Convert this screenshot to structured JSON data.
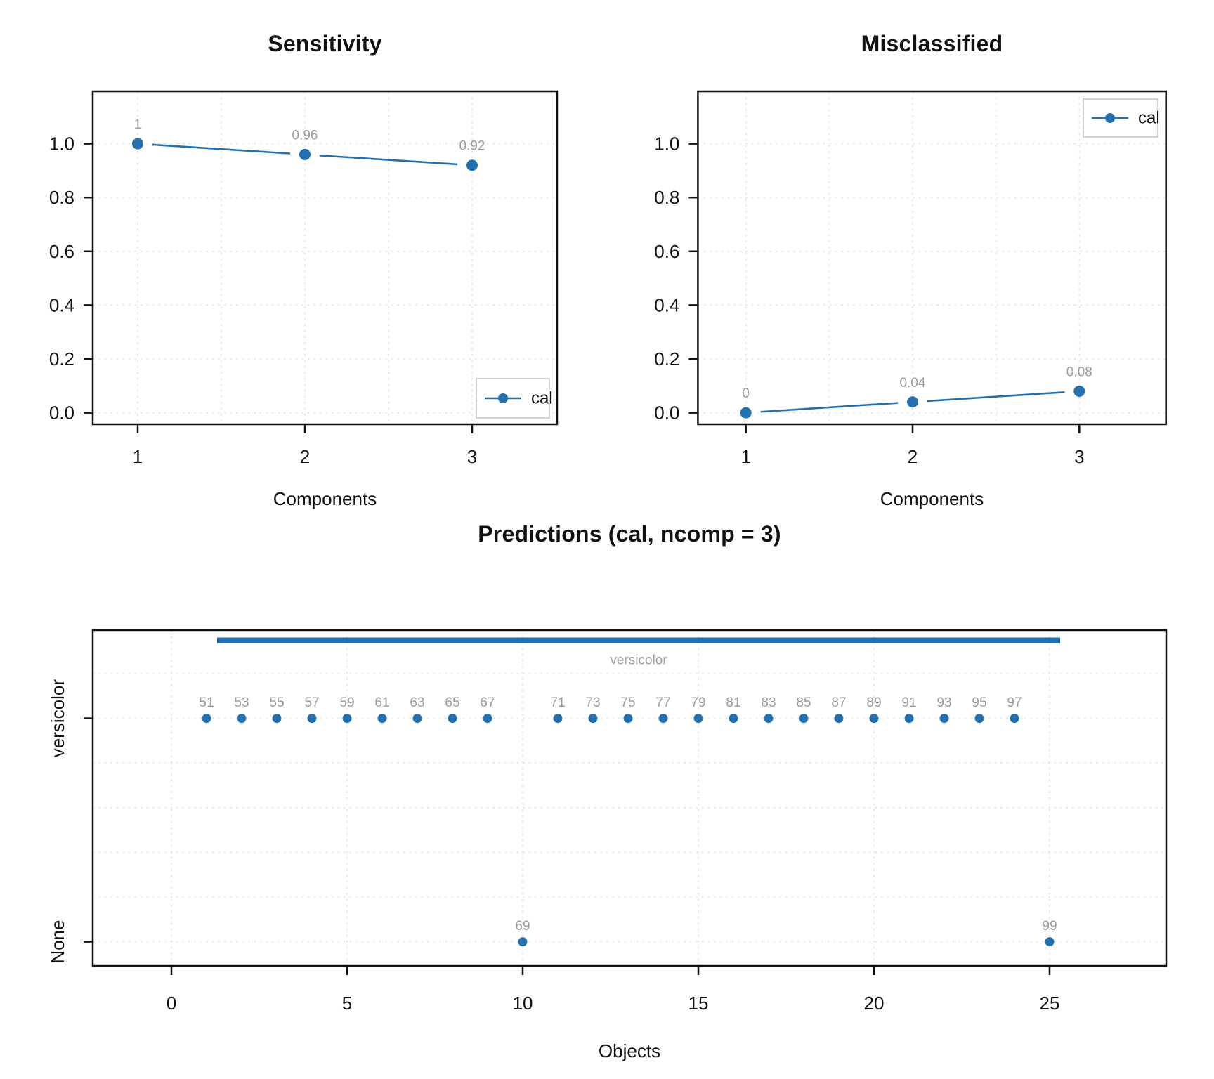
{
  "figure": {
    "background": "#ffffff",
    "accent_color": "#2470AE",
    "grid_color": "#E0E0E0",
    "data_label_color": "#9C9C9C",
    "axis_color": "#111111",
    "legend_border_color": "#C9C9C9"
  },
  "chart_data": [
    {
      "type": "line",
      "title": "Sensitivity",
      "xlabel": "Components",
      "x": [
        1,
        2,
        3
      ],
      "xticks": [
        "1",
        "2",
        "3"
      ],
      "x_minor_grid": [
        1.5,
        2.5
      ],
      "yticks": [
        "0.0",
        "0.2",
        "0.4",
        "0.6",
        "0.8",
        "1.0"
      ],
      "ylim": [
        0,
        1.2
      ],
      "series": [
        {
          "name": "cal",
          "values": [
            1,
            0.96,
            0.92
          ],
          "point_labels": [
            "1",
            "0.96",
            "0.92"
          ]
        }
      ],
      "legend": {
        "label": "cal",
        "position": "bottom-right"
      }
    },
    {
      "type": "line",
      "title": "Misclassified",
      "xlabel": "Components",
      "x": [
        1,
        2,
        3
      ],
      "xticks": [
        "1",
        "2",
        "3"
      ],
      "x_minor_grid": [
        1.5,
        2.5
      ],
      "yticks": [
        "0.0",
        "0.2",
        "0.4",
        "0.6",
        "0.8",
        "1.0"
      ],
      "ylim": [
        0,
        1.2
      ],
      "series": [
        {
          "name": "cal",
          "values": [
            0,
            0.04,
            0.08
          ],
          "point_labels": [
            "0",
            "0.04",
            "0.08"
          ]
        }
      ],
      "legend": {
        "label": "cal",
        "position": "top-right"
      }
    },
    {
      "type": "categorical-scatter",
      "title": "Predictions (cal, ncomp = 3)",
      "xlabel": "Objects",
      "xticks": [
        "0",
        "5",
        "10",
        "15",
        "20",
        "25"
      ],
      "categories": [
        "None",
        "versicolor"
      ],
      "class_bar": {
        "label": "versicolor",
        "x_from": 1.3,
        "x_to": 25.3
      },
      "points": [
        {
          "x": 1,
          "label": "51",
          "category": "versicolor"
        },
        {
          "x": 2,
          "label": "53",
          "category": "versicolor"
        },
        {
          "x": 3,
          "label": "55",
          "category": "versicolor"
        },
        {
          "x": 4,
          "label": "57",
          "category": "versicolor"
        },
        {
          "x": 5,
          "label": "59",
          "category": "versicolor"
        },
        {
          "x": 6,
          "label": "61",
          "category": "versicolor"
        },
        {
          "x": 7,
          "label": "63",
          "category": "versicolor"
        },
        {
          "x": 8,
          "label": "65",
          "category": "versicolor"
        },
        {
          "x": 9,
          "label": "67",
          "category": "versicolor"
        },
        {
          "x": 10,
          "label": "69",
          "category": "None"
        },
        {
          "x": 11,
          "label": "71",
          "category": "versicolor"
        },
        {
          "x": 12,
          "label": "73",
          "category": "versicolor"
        },
        {
          "x": 13,
          "label": "75",
          "category": "versicolor"
        },
        {
          "x": 14,
          "label": "77",
          "category": "versicolor"
        },
        {
          "x": 15,
          "label": "79",
          "category": "versicolor"
        },
        {
          "x": 16,
          "label": "81",
          "category": "versicolor"
        },
        {
          "x": 17,
          "label": "83",
          "category": "versicolor"
        },
        {
          "x": 18,
          "label": "85",
          "category": "versicolor"
        },
        {
          "x": 19,
          "label": "87",
          "category": "versicolor"
        },
        {
          "x": 20,
          "label": "89",
          "category": "versicolor"
        },
        {
          "x": 21,
          "label": "91",
          "category": "versicolor"
        },
        {
          "x": 22,
          "label": "93",
          "category": "versicolor"
        },
        {
          "x": 23,
          "label": "95",
          "category": "versicolor"
        },
        {
          "x": 24,
          "label": "97",
          "category": "versicolor"
        },
        {
          "x": 25,
          "label": "99",
          "category": "None"
        }
      ]
    }
  ]
}
